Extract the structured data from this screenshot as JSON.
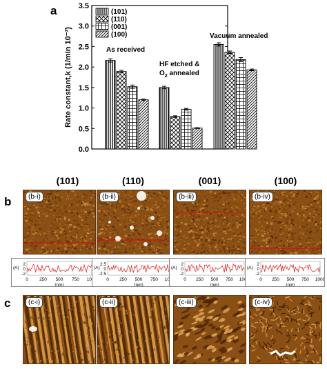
{
  "panel_letters": {
    "a": "a",
    "b": "b",
    "c": "c"
  },
  "chart_data": {
    "type": "bar",
    "ylabel": "Rate constant,k (1/min 10⁻³)",
    "xlabel": "",
    "ylim": [
      0,
      3.5
    ],
    "yticks": [
      "0.0",
      "0.5",
      "1.0",
      "1.5",
      "2.0",
      "2.5",
      "3.0",
      "3.5"
    ],
    "legend_position": "top-left",
    "groups": [
      {
        "label": "As received",
        "label_lines": [
          "As received"
        ]
      },
      {
        "label": "HF etched & O2 annealed",
        "label_lines": [
          "HF etched &",
          "O",
          "2",
          " annealed"
        ]
      },
      {
        "label": "Vacuum annealed",
        "label_lines": [
          "Vacuum annealed"
        ]
      }
    ],
    "series": [
      {
        "name": "(101)",
        "pattern": "vlines",
        "values": [
          2.16,
          1.5,
          2.55
        ],
        "errors": [
          0.04,
          0.03,
          0.04
        ]
      },
      {
        "name": "(110)",
        "pattern": "cross",
        "values": [
          1.89,
          0.79,
          2.36
        ],
        "errors": [
          0.03,
          0.02,
          0.03
        ]
      },
      {
        "name": "(001)",
        "pattern": "grid",
        "values": [
          1.52,
          0.97,
          2.18
        ],
        "errors": [
          0.04,
          0.02,
          0.05
        ]
      },
      {
        "name": "(100)",
        "pattern": "diag",
        "values": [
          1.2,
          0.51,
          1.93
        ],
        "errors": [
          0.02,
          0.01,
          0.02
        ]
      }
    ]
  },
  "afm": {
    "facets": [
      "(101)",
      "(110)",
      "(001)",
      "(100)"
    ],
    "b_labels": [
      "(b-i)",
      "(b-ii)",
      "(b-iii)",
      "(b-iv)"
    ],
    "c_labels": [
      "(c-i)",
      "(c-ii)",
      "(c-iii)",
      "(c-iv)"
    ],
    "profile_xticks": [
      "0",
      "250",
      "500",
      "750",
      "1000"
    ],
    "profile_xunit": "(nm)",
    "profile_ylabel": "(A)",
    "profile_yticks": [
      [
        "2",
        "0",
        "-2"
      ],
      [
        "2.5",
        "0",
        "-2.5"
      ],
      [
        "2",
        "0",
        "-2"
      ],
      [
        "2",
        "0",
        "-2"
      ]
    ],
    "colors": {
      "afm_base": "#8a4f14",
      "profile_line": "#e03030",
      "scan_line": "#d01010"
    }
  }
}
